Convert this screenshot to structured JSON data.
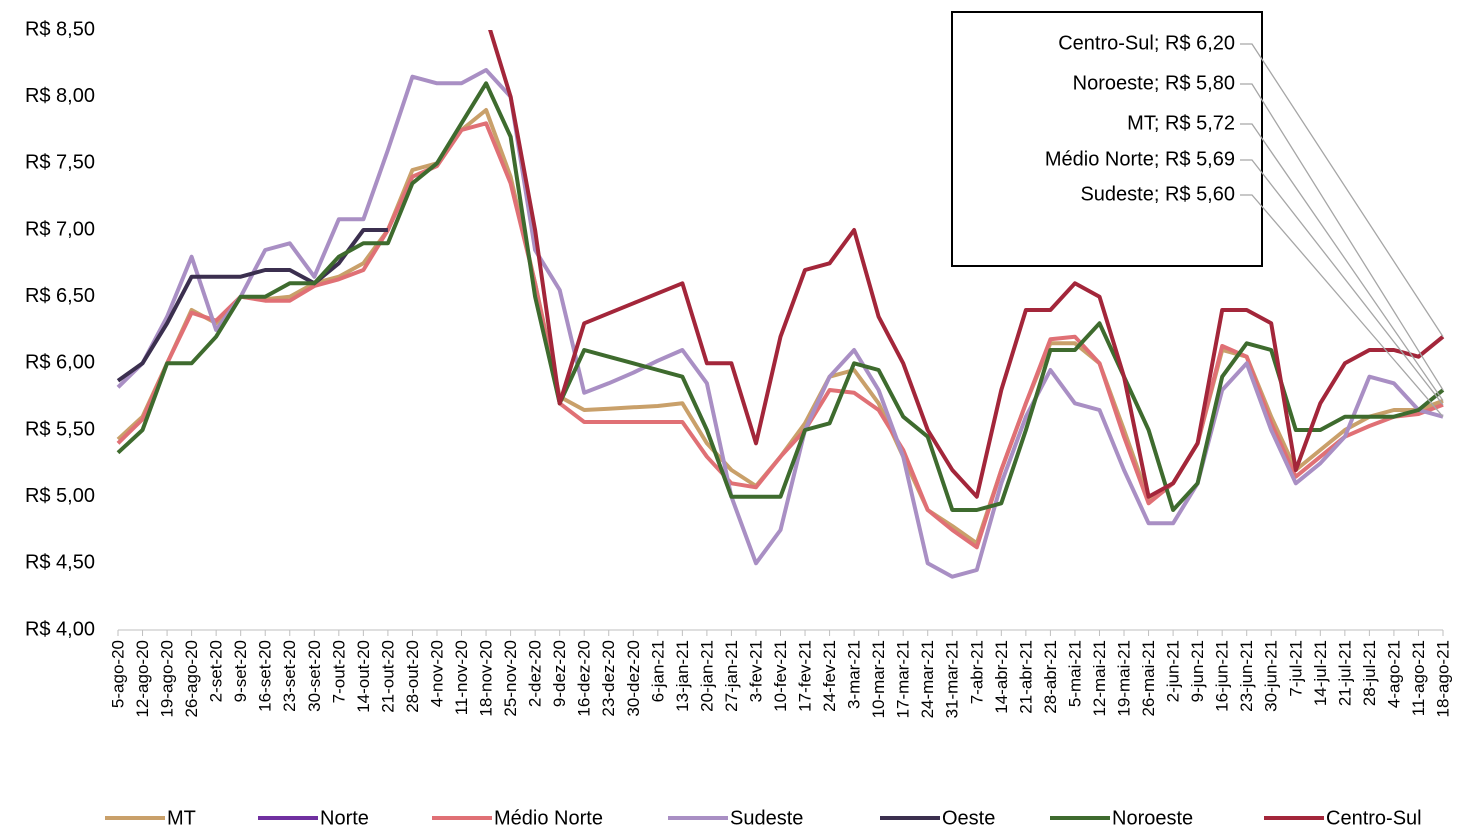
{
  "chart_data": {
    "type": "line",
    "categories": [
      "5-ago-20",
      "12-ago-20",
      "19-ago-20",
      "26-ago-20",
      "2-set-20",
      "9-set-20",
      "16-set-20",
      "23-set-20",
      "30-set-20",
      "7-out-20",
      "14-out-20",
      "21-out-20",
      "28-out-20",
      "4-nov-20",
      "11-nov-20",
      "18-nov-20",
      "25-nov-20",
      "2-dez-20",
      "9-dez-20",
      "16-dez-20",
      "23-dez-20",
      "30-dez-20",
      "6-jan-21",
      "13-jan-21",
      "20-jan-21",
      "27-jan-21",
      "3-fev-21",
      "10-fev-21",
      "17-fev-21",
      "24-fev-21",
      "3-mar-21",
      "10-mar-21",
      "17-mar-21",
      "24-mar-21",
      "31-mar-21",
      "7-abr-21",
      "14-abr-21",
      "21-abr-21",
      "28-abr-21",
      "5-mai-21",
      "12-mai-21",
      "19-mai-21",
      "26-mai-21",
      "2-jun-21",
      "9-jun-21",
      "16-jun-21",
      "23-jun-21",
      "30-jun-21",
      "7-jul-21",
      "14-jul-21",
      "21-jul-21",
      "28-jul-21",
      "4-ago-21",
      "11-ago-21",
      "18-ago-21"
    ],
    "series": [
      {
        "name": "MT",
        "color": "#c9a06a",
        "values": [
          5.43,
          5.6,
          6.0,
          6.4,
          6.3,
          6.5,
          6.48,
          6.5,
          6.6,
          6.65,
          6.75,
          7.0,
          7.45,
          7.5,
          7.75,
          7.9,
          7.4,
          6.6,
          5.75,
          5.65,
          5.66,
          5.67,
          5.68,
          5.7,
          5.4,
          5.2,
          5.08,
          5.3,
          5.55,
          5.9,
          5.95,
          5.7,
          5.3,
          4.9,
          4.78,
          4.65,
          5.2,
          5.7,
          6.15,
          6.15,
          6.0,
          5.5,
          4.98,
          5.1,
          5.4,
          6.1,
          6.05,
          5.6,
          5.2,
          5.35,
          5.5,
          5.6,
          5.65,
          5.65,
          5.72
        ]
      },
      {
        "name": "Norte",
        "color": "#7030a0",
        "values": [
          null,
          null,
          null,
          null,
          null,
          null,
          null,
          null,
          null,
          null,
          null,
          null,
          null,
          null,
          null,
          null,
          null,
          null,
          null,
          null,
          null,
          null,
          null,
          null,
          null,
          null,
          null,
          null,
          null,
          null,
          null,
          null,
          null,
          null,
          null,
          null,
          null,
          null,
          null,
          null,
          null,
          null,
          null,
          null,
          null,
          null,
          null,
          null,
          null,
          null,
          null,
          null,
          null,
          null,
          null
        ]
      },
      {
        "name": "Médio Norte",
        "color": "#e07075",
        "values": [
          5.4,
          5.58,
          6.0,
          6.38,
          6.32,
          6.5,
          6.47,
          6.47,
          6.58,
          6.63,
          6.7,
          7.0,
          7.4,
          7.48,
          7.75,
          7.8,
          7.35,
          6.6,
          5.7,
          5.56,
          5.56,
          5.56,
          5.56,
          5.56,
          5.3,
          5.1,
          5.07,
          5.3,
          5.5,
          5.8,
          5.78,
          5.65,
          5.35,
          4.9,
          4.75,
          4.62,
          5.2,
          5.7,
          6.18,
          6.2,
          6.0,
          5.45,
          4.95,
          5.1,
          5.4,
          6.13,
          6.05,
          5.55,
          5.15,
          5.3,
          5.45,
          5.53,
          5.6,
          5.62,
          5.69
        ]
      },
      {
        "name": "Sudeste",
        "color": "#a98fc4",
        "values": [
          5.82,
          6.0,
          6.35,
          6.8,
          6.25,
          6.5,
          6.85,
          6.9,
          6.65,
          7.08,
          7.08,
          7.6,
          8.15,
          8.1,
          8.1,
          8.2,
          8.0,
          6.85,
          6.55,
          5.78,
          5.85,
          5.93,
          6.02,
          6.1,
          5.85,
          5.0,
          4.5,
          4.75,
          5.5,
          5.9,
          6.1,
          5.8,
          5.3,
          4.5,
          4.4,
          4.45,
          5.1,
          5.6,
          5.95,
          5.7,
          5.65,
          5.2,
          4.8,
          4.8,
          5.1,
          5.8,
          6.0,
          5.5,
          5.1,
          5.25,
          5.45,
          5.9,
          5.85,
          5.65,
          5.6
        ]
      },
      {
        "name": "Oeste",
        "color": "#3b2f4f",
        "values": [
          5.87,
          6.0,
          6.3,
          6.65,
          6.65,
          6.65,
          6.7,
          6.7,
          6.6,
          6.75,
          7.0,
          7.0,
          null,
          null,
          null,
          null,
          null,
          null,
          null,
          null,
          null,
          null,
          null,
          null,
          null,
          null,
          null,
          null,
          null,
          null,
          null,
          null,
          null,
          null,
          null,
          null,
          null,
          null,
          null,
          null,
          null,
          null,
          null,
          null,
          null,
          null,
          null,
          null,
          null,
          null,
          null,
          null,
          null,
          null,
          null
        ]
      },
      {
        "name": "Noroeste",
        "color": "#3e6b2e",
        "values": [
          5.33,
          5.5,
          6.0,
          6.0,
          6.2,
          6.5,
          6.5,
          6.6,
          6.6,
          6.8,
          6.9,
          6.9,
          7.35,
          7.5,
          7.8,
          8.1,
          7.7,
          6.5,
          5.7,
          6.1,
          6.05,
          6.0,
          5.95,
          5.9,
          5.5,
          5.0,
          5.0,
          5.0,
          5.5,
          5.55,
          6.0,
          5.95,
          5.6,
          5.45,
          4.9,
          4.9,
          4.95,
          5.5,
          6.1,
          6.1,
          6.3,
          5.9,
          5.5,
          4.9,
          5.1,
          5.9,
          6.15,
          6.1,
          5.5,
          5.5,
          5.6,
          5.6,
          5.6,
          5.65,
          5.8
        ]
      },
      {
        "name": "Centro-Sul",
        "color": "#a3263a",
        "values": [
          null,
          null,
          null,
          null,
          null,
          null,
          null,
          null,
          null,
          null,
          null,
          null,
          null,
          null,
          null,
          8.6,
          8.0,
          7.0,
          5.7,
          6.3,
          6.375,
          6.45,
          6.525,
          6.6,
          6.0,
          6.0,
          5.4,
          6.2,
          6.7,
          6.75,
          7.0,
          6.35,
          6.0,
          5.5,
          5.2,
          5.0,
          5.8,
          6.4,
          6.4,
          6.6,
          6.5,
          5.9,
          5.0,
          5.1,
          5.4,
          6.4,
          6.4,
          6.3,
          5.2,
          5.7,
          6.0,
          6.1,
          6.1,
          6.05,
          6.2
        ]
      }
    ],
    "ylim": [
      4,
      8.5
    ],
    "yticks": [
      {
        "value": 4,
        "label": "R$ 4,00"
      },
      {
        "value": 4.5,
        "label": "R$ 4,50"
      },
      {
        "value": 5,
        "label": "R$ 5,00"
      },
      {
        "value": 5.5,
        "label": "R$ 5,50"
      },
      {
        "value": 6,
        "label": "R$ 6,00"
      },
      {
        "value": 6.5,
        "label": "R$ 6,50"
      },
      {
        "value": 7,
        "label": "R$ 7,00"
      },
      {
        "value": 7.5,
        "label": "R$ 7,50"
      },
      {
        "value": 8,
        "label": "R$ 8,00"
      },
      {
        "value": 8.5,
        "label": "R$ 8,50"
      }
    ],
    "annotations": [
      "Centro-Sul; R$ 6,20",
      "Noroeste; R$ 5,80",
      "MT; R$ 5,72",
      "Médio Norte; R$ 5,69",
      "Sudeste; R$ 5,60"
    ],
    "legend": "bottom"
  }
}
